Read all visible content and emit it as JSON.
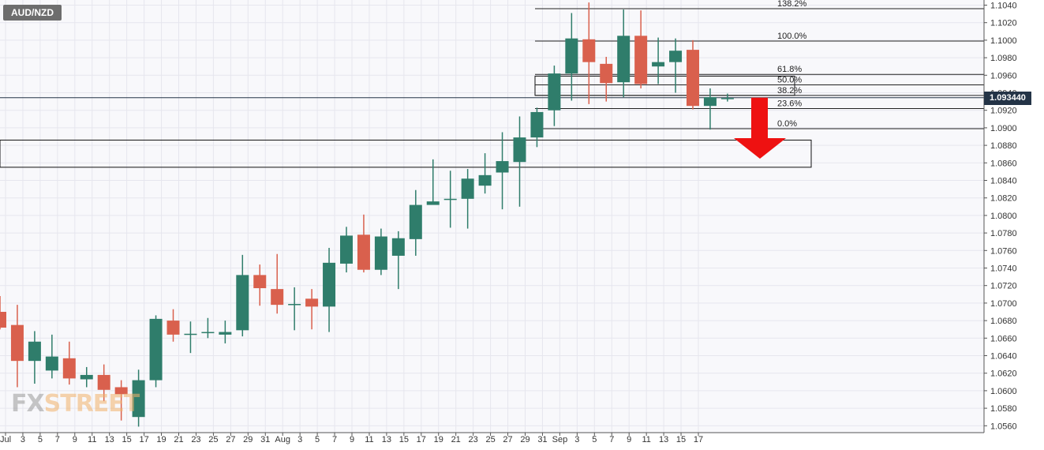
{
  "symbol": "AUD/NZD",
  "current_price_label": "1.093440",
  "watermark": {
    "left": "FX",
    "right": "STREET"
  },
  "colors": {
    "up": "#2f7d6b",
    "down": "#d9604d",
    "grid": "#e6e6ee",
    "background": "#f8f8fb",
    "arrow": "#ee1111"
  },
  "chart_data": {
    "type": "candlestick",
    "title": "AUD/NZD",
    "ylim": [
      1.0555,
      1.1045
    ],
    "y_ticks": [
      "1.0560",
      "1.0580",
      "1.0600",
      "1.0620",
      "1.0640",
      "1.0660",
      "1.0680",
      "1.0700",
      "1.0720",
      "1.0740",
      "1.0760",
      "1.0780",
      "1.0800",
      "1.0820",
      "1.0840",
      "1.0860",
      "1.0880",
      "1.0900",
      "1.0920",
      "1.0940",
      "1.0960",
      "1.0980",
      "1.1000",
      "1.1020",
      "1.1040"
    ],
    "x_ticks": [
      "Jul",
      "3",
      "5",
      "7",
      "9",
      "11",
      "13",
      "15",
      "17",
      "19",
      "21",
      "23",
      "25",
      "27",
      "29",
      "31",
      "Aug",
      "3",
      "5",
      "7",
      "9",
      "11",
      "13",
      "15",
      "17",
      "19",
      "21",
      "23",
      "25",
      "27",
      "29",
      "31",
      "Sep",
      "3",
      "5",
      "7",
      "9",
      "11",
      "13",
      "15",
      "17"
    ],
    "grid": true,
    "candles": [
      {
        "o": 1.069,
        "h": 1.0708,
        "l": 1.067,
        "c": 1.0672
      },
      {
        "o": 1.0675,
        "h": 1.0698,
        "l": 1.0604,
        "c": 1.0634
      },
      {
        "o": 1.0634,
        "h": 1.0668,
        "l": 1.0608,
        "c": 1.0656
      },
      {
        "o": 1.0623,
        "h": 1.0664,
        "l": 1.0614,
        "c": 1.0639
      },
      {
        "o": 1.0637,
        "h": 1.0656,
        "l": 1.0607,
        "c": 1.0614
      },
      {
        "o": 1.0613,
        "h": 1.0627,
        "l": 1.0604,
        "c": 1.0618
      },
      {
        "o": 1.0618,
        "h": 1.063,
        "l": 1.0588,
        "c": 1.0601
      },
      {
        "o": 1.0604,
        "h": 1.0612,
        "l": 1.0566,
        "c": 1.0596
      },
      {
        "o": 1.057,
        "h": 1.0624,
        "l": 1.0559,
        "c": 1.0612
      },
      {
        "o": 1.0612,
        "h": 1.0686,
        "l": 1.0604,
        "c": 1.0682
      },
      {
        "o": 1.068,
        "h": 1.0693,
        "l": 1.0656,
        "c": 1.0664
      },
      {
        "o": 1.0665,
        "h": 1.0679,
        "l": 1.0643,
        "c": 1.0665
      },
      {
        "o": 1.0667,
        "h": 1.0683,
        "l": 1.066,
        "c": 1.0667
      },
      {
        "o": 1.0664,
        "h": 1.068,
        "l": 1.0654,
        "c": 1.0667
      },
      {
        "o": 1.0669,
        "h": 1.0755,
        "l": 1.0662,
        "c": 1.0732
      },
      {
        "o": 1.0732,
        "h": 1.0744,
        "l": 1.0697,
        "c": 1.0717
      },
      {
        "o": 1.0716,
        "h": 1.0756,
        "l": 1.0688,
        "c": 1.0698
      },
      {
        "o": 1.0699,
        "h": 1.0718,
        "l": 1.0669,
        "c": 1.0699
      },
      {
        "o": 1.0705,
        "h": 1.0716,
        "l": 1.067,
        "c": 1.0696
      },
      {
        "o": 1.0696,
        "h": 1.0763,
        "l": 1.0667,
        "c": 1.0746
      },
      {
        "o": 1.0745,
        "h": 1.0787,
        "l": 1.0735,
        "c": 1.0777
      },
      {
        "o": 1.0778,
        "h": 1.0801,
        "l": 1.0735,
        "c": 1.0738
      },
      {
        "o": 1.0738,
        "h": 1.0785,
        "l": 1.0732,
        "c": 1.0776
      },
      {
        "o": 1.0754,
        "h": 1.0782,
        "l": 1.0716,
        "c": 1.0774
      },
      {
        "o": 1.0773,
        "h": 1.0829,
        "l": 1.0754,
        "c": 1.0812
      },
      {
        "o": 1.0812,
        "h": 1.0864,
        "l": 1.0813,
        "c": 1.0816
      },
      {
        "o": 1.0818,
        "h": 1.0851,
        "l": 1.0786,
        "c": 1.0819
      },
      {
        "o": 1.0819,
        "h": 1.0853,
        "l": 1.0785,
        "c": 1.0842
      },
      {
        "o": 1.0834,
        "h": 1.0871,
        "l": 1.0825,
        "c": 1.0846
      },
      {
        "o": 1.0849,
        "h": 1.0895,
        "l": 1.0807,
        "c": 1.0862
      },
      {
        "o": 1.0861,
        "h": 1.0913,
        "l": 1.081,
        "c": 1.0889
      },
      {
        "o": 1.0889,
        "h": 1.0923,
        "l": 1.0878,
        "c": 1.0918
      },
      {
        "o": 1.092,
        "h": 1.0971,
        "l": 1.0902,
        "c": 1.0962
      },
      {
        "o": 1.0962,
        "h": 1.1031,
        "l": 1.0931,
        "c": 1.1002
      },
      {
        "o": 1.1001,
        "h": 1.1043,
        "l": 1.0927,
        "c": 1.0975
      },
      {
        "o": 1.0973,
        "h": 1.0981,
        "l": 1.093,
        "c": 1.0951
      },
      {
        "o": 1.0952,
        "h": 1.1035,
        "l": 1.0935,
        "c": 1.1005
      },
      {
        "o": 1.1005,
        "h": 1.1034,
        "l": 1.0945,
        "c": 1.095
      },
      {
        "o": 1.097,
        "h": 1.1003,
        "l": 1.095,
        "c": 1.0975
      },
      {
        "o": 1.0975,
        "h": 1.1002,
        "l": 1.094,
        "c": 1.0988
      },
      {
        "o": 1.0989,
        "h": 1.1,
        "l": 1.0921,
        "c": 1.0925
      },
      {
        "o": 1.0925,
        "h": 1.0945,
        "l": 1.0898,
        "c": 1.0935
      },
      {
        "o": 1.0934,
        "h": 1.0939,
        "l": 1.093,
        "c": 1.0934
      }
    ],
    "fib_levels": [
      {
        "label": "138.2%",
        "value": 1.1036
      },
      {
        "label": "100.0%",
        "value": 1.0999
      },
      {
        "label": "61.8%",
        "value": 1.0961
      },
      {
        "label": "50.0%",
        "value": 1.0949
      },
      {
        "label": "38.2%",
        "value": 1.0937
      },
      {
        "label": "23.6%",
        "value": 1.0922
      },
      {
        "label": "0.0%",
        "value": 1.0899
      }
    ],
    "zones": [
      {
        "from": 1.0937,
        "to": 1.0959
      },
      {
        "from": 1.0855,
        "to": 1.0886
      }
    ],
    "current_price": 1.09344
  }
}
